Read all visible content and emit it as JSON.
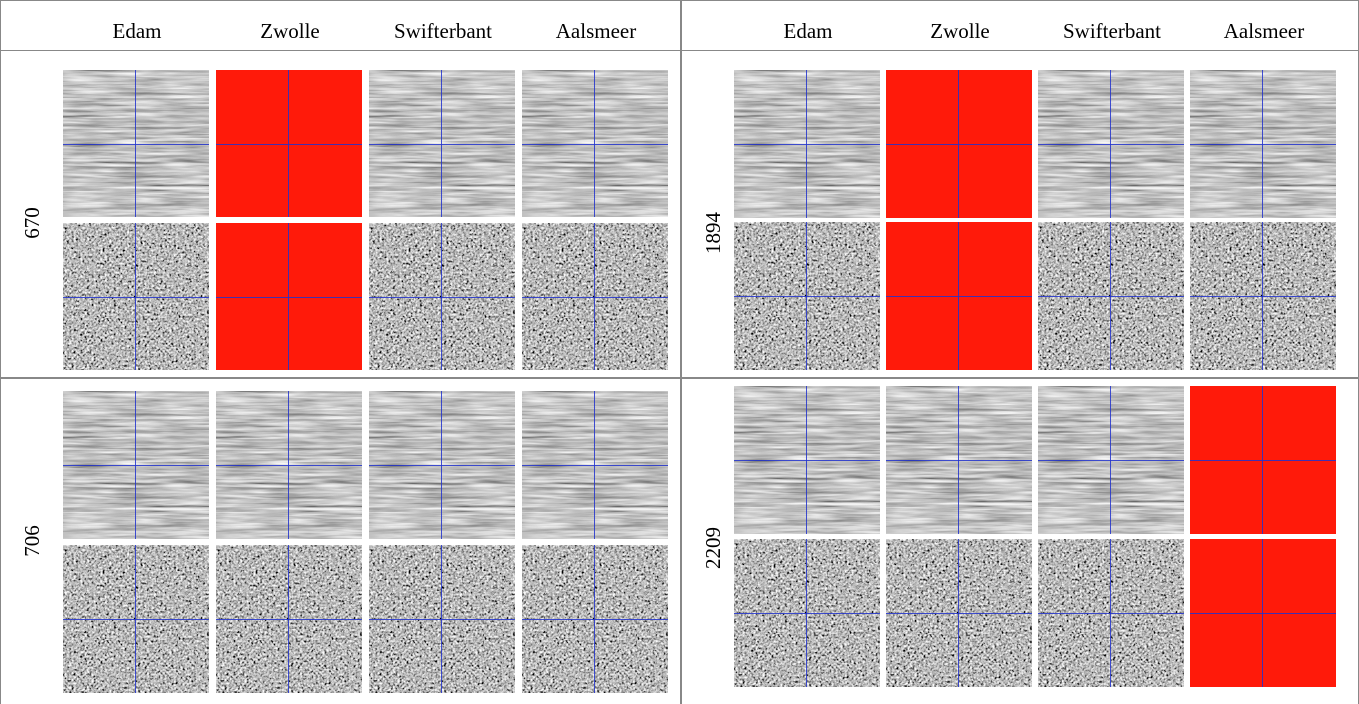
{
  "headers": [
    "Edam",
    "Zwolle",
    "Swifterbant",
    "Aalsmeer",
    "Edam",
    "Zwolle",
    "Swifterbant",
    "Aalsmeer"
  ],
  "panels": [
    {
      "label": "670",
      "missing": [
        "Zwolle"
      ]
    },
    {
      "label": "1894",
      "missing": [
        "Zwolle"
      ]
    },
    {
      "label": "706",
      "missing": []
    },
    {
      "label": "2209",
      "missing": [
        "Aalsmeer"
      ]
    }
  ],
  "colors": {
    "missing": "#ff1a0a",
    "crosshair": "#2233cc",
    "grid_lines": "#888888"
  }
}
